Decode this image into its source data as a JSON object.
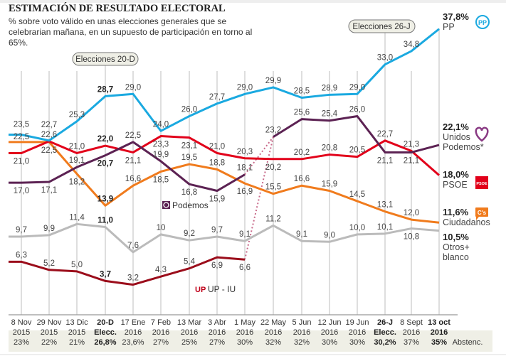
{
  "header": {
    "title": "ESTIMACIÓN DE RESULTADO ELECTORAL",
    "subtitle": "% sobre voto válido en unas elecciones generales que se celebrarian mañana, en un supuesto de participación en torno al 65%."
  },
  "annotations": {
    "elections_20d": "Elecciones 20-D",
    "elections_26j": "Elecciones 26-J",
    "podemos_label": "Podemos",
    "upiu_label": "UP - IU"
  },
  "chart_data": {
    "type": "line",
    "title": "ESTIMACIÓN DE RESULTADO ELECTORAL",
    "categories": [
      {
        "l1": "8 Nov",
        "l2": "2015",
        "abst": "23%",
        "bold": false
      },
      {
        "l1": "29 Nov",
        "l2": "2015",
        "abst": "22%",
        "bold": false
      },
      {
        "l1": "13 Dic",
        "l2": "2015",
        "abst": "21%",
        "bold": false
      },
      {
        "l1": "20-D",
        "l2": "Elecc.",
        "abst": "26,8%",
        "bold": true
      },
      {
        "l1": "17 Ene",
        "l2": "2016",
        "abst": "23,6%",
        "bold": false
      },
      {
        "l1": "7 Feb",
        "l2": "2016",
        "abst": "27%",
        "bold": false
      },
      {
        "l1": "13 Mar",
        "l2": "2016",
        "abst": "25%",
        "bold": false
      },
      {
        "l1": "3 Abr",
        "l2": "2016",
        "abst": "27%",
        "bold": false
      },
      {
        "l1": "1 May",
        "l2": "2016",
        "abst": "30%",
        "bold": false
      },
      {
        "l1": "22 May",
        "l2": "2016",
        "abst": "32%",
        "bold": false
      },
      {
        "l1": "5 Jun",
        "l2": "2016",
        "abst": "32%",
        "bold": false
      },
      {
        "l1": "12 Jun",
        "l2": "2016",
        "abst": "30%",
        "bold": false
      },
      {
        "l1": "19 Jun",
        "l2": "2016",
        "abst": "30%",
        "bold": false
      },
      {
        "l1": "26-J",
        "l2": "Elecc.",
        "abst": "30,2%",
        "bold": true
      },
      {
        "l1": "8 Sept",
        "l2": "2016",
        "abst": "37%",
        "bold": false
      },
      {
        "l1": "13 oct",
        "l2": "2016",
        "abst": "35%",
        "bold": true
      }
    ],
    "abstention_label": "Abstenc.",
    "series": [
      {
        "name": "PP",
        "final": "37,8%",
        "color": "#1aa9e0",
        "values": [
          23.5,
          22.7,
          25.3,
          28.7,
          29.0,
          24.0,
          26.0,
          27.7,
          29.0,
          29.9,
          28.5,
          28.9,
          29.0,
          33.0,
          34.8,
          37.8
        ]
      },
      {
        "name": "PSOE",
        "final": "18,0%",
        "color": "#e2001a",
        "values": [
          21.0,
          22.6,
          21.0,
          22.0,
          21.1,
          23.3,
          23.1,
          21.0,
          20.3,
          20.2,
          20.2,
          20.8,
          20.5,
          22.7,
          21.3,
          18.0
        ]
      },
      {
        "name": "Unidos Podemos*",
        "final": "22,1%",
        "color": "#5c2253",
        "values": [
          17.0,
          17.1,
          19.1,
          20.7,
          22.5,
          19.9,
          16.8,
          15.9,
          18.1,
          23.2,
          25.6,
          25.4,
          26.0,
          21.1,
          21.1,
          22.1
        ]
      },
      {
        "name": "Ciudadanos",
        "final": "11,6%",
        "color": "#f07b1d",
        "values": [
          22.5,
          22.5,
          18.2,
          13.9,
          16.6,
          18.5,
          19.5,
          18.8,
          16.9,
          15.5,
          16.6,
          15.9,
          14.5,
          13.1,
          12.0,
          11.6
        ]
      },
      {
        "name": "Otros+ blanco",
        "final": "10,5%",
        "color": "#bbbbbb",
        "values": [
          9.7,
          9.9,
          11.4,
          11.0,
          7.6,
          10,
          9.2,
          9.7,
          9.1,
          11.2,
          9.1,
          9.0,
          10.0,
          10.1,
          10.8,
          10.5
        ]
      },
      {
        "name": "UP - IU",
        "final": "",
        "color": "#9b0d1b",
        "values": [
          6.3,
          5.2,
          5.0,
          3.7,
          3.2,
          4.3,
          5.4,
          6.9,
          6.6,
          null,
          null,
          null,
          null,
          null,
          null,
          null
        ]
      }
    ],
    "legend": [
      {
        "pct": "37,8%",
        "l1": "PP",
        "l2": "",
        "icon": "pp-logo-icon"
      },
      {
        "pct": "22,1%",
        "l1": "Unidos",
        "l2": "Podemos*",
        "icon": "heart-logo-icon"
      },
      {
        "pct": "18,0%",
        "l1": "PSOE",
        "l2": "",
        "icon": "psoe-logo-icon"
      },
      {
        "pct": "11,6%",
        "l1": "Ciudadanos",
        "l2": "",
        "icon": "cs-logo-icon"
      },
      {
        "pct": "10,5%",
        "l1": "Otros+",
        "l2": "blanco",
        "icon": ""
      }
    ],
    "logo_text": {
      "pp": "PP",
      "psoe": "PSOE",
      "cs": "C's",
      "up": "UP"
    },
    "grid": "vertical"
  }
}
